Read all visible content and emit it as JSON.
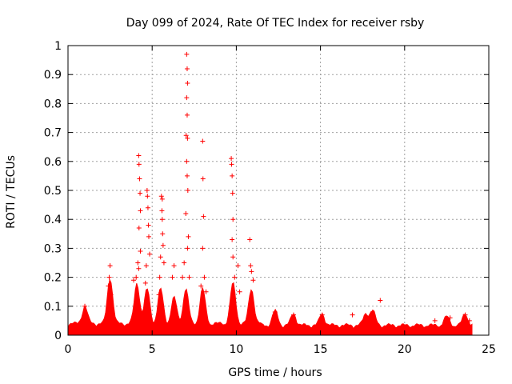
{
  "chart_data": {
    "type": "scatter",
    "title": "Day 099 of 2024, Rate Of TEC Index for receiver rsby",
    "xlabel": "GPS time / hours",
    "ylabel": "ROTI / TECUs",
    "xlim": [
      0,
      25
    ],
    "ylim": [
      0,
      1
    ],
    "xticks": [
      "0",
      "5",
      "10",
      "15",
      "20",
      "25"
    ],
    "yticks": [
      "0",
      "0.1",
      "0.2",
      "0.3",
      "0.4",
      "0.5",
      "0.6",
      "0.7",
      "0.8",
      "0.9",
      "1"
    ],
    "grid": true,
    "marker": "plus",
    "series_color": "#ff0000",
    "points": [
      [
        1.0,
        0.1
      ],
      [
        2.4,
        0.17
      ],
      [
        2.45,
        0.2
      ],
      [
        2.5,
        0.24
      ],
      [
        2.55,
        0.14
      ],
      [
        3.9,
        0.19
      ],
      [
        4.05,
        0.2
      ],
      [
        4.15,
        0.25
      ],
      [
        4.2,
        0.62
      ],
      [
        4.22,
        0.59
      ],
      [
        4.25,
        0.54
      ],
      [
        4.28,
        0.49
      ],
      [
        4.3,
        0.43
      ],
      [
        4.22,
        0.37
      ],
      [
        4.3,
        0.29
      ],
      [
        4.2,
        0.23
      ],
      [
        4.6,
        0.18
      ],
      [
        4.65,
        0.24
      ],
      [
        4.7,
        0.5
      ],
      [
        4.72,
        0.48
      ],
      [
        4.75,
        0.44
      ],
      [
        4.78,
        0.38
      ],
      [
        4.8,
        0.34
      ],
      [
        4.85,
        0.28
      ],
      [
        5.4,
        0.14
      ],
      [
        5.45,
        0.2
      ],
      [
        5.5,
        0.27
      ],
      [
        5.55,
        0.48
      ],
      [
        5.6,
        0.47
      ],
      [
        5.58,
        0.43
      ],
      [
        5.6,
        0.4
      ],
      [
        5.62,
        0.35
      ],
      [
        5.65,
        0.31
      ],
      [
        5.7,
        0.25
      ],
      [
        6.2,
        0.2
      ],
      [
        6.3,
        0.24
      ],
      [
        6.8,
        0.2
      ],
      [
        6.9,
        0.25
      ],
      [
        7.0,
        0.42
      ],
      [
        7.05,
        0.97
      ],
      [
        7.08,
        0.92
      ],
      [
        7.1,
        0.87
      ],
      [
        7.05,
        0.82
      ],
      [
        7.08,
        0.76
      ],
      [
        7.02,
        0.69
      ],
      [
        7.1,
        0.68
      ],
      [
        7.05,
        0.6
      ],
      [
        7.08,
        0.55
      ],
      [
        7.12,
        0.5
      ],
      [
        7.15,
        0.34
      ],
      [
        7.1,
        0.3
      ],
      [
        7.2,
        0.2
      ],
      [
        7.9,
        0.17
      ],
      [
        8.0,
        0.67
      ],
      [
        8.02,
        0.54
      ],
      [
        8.05,
        0.41
      ],
      [
        8.0,
        0.3
      ],
      [
        8.1,
        0.2
      ],
      [
        8.2,
        0.15
      ],
      [
        9.7,
        0.61
      ],
      [
        9.72,
        0.59
      ],
      [
        9.75,
        0.55
      ],
      [
        9.78,
        0.49
      ],
      [
        9.8,
        0.4
      ],
      [
        9.75,
        0.33
      ],
      [
        9.8,
        0.27
      ],
      [
        9.9,
        0.2
      ],
      [
        10.1,
        0.24
      ],
      [
        10.2,
        0.15
      ],
      [
        10.8,
        0.33
      ],
      [
        10.85,
        0.24
      ],
      [
        10.9,
        0.22
      ],
      [
        11.0,
        0.19
      ],
      [
        12.3,
        0.08
      ],
      [
        13.4,
        0.07
      ],
      [
        15.1,
        0.07
      ],
      [
        16.9,
        0.07
      ],
      [
        17.7,
        0.06
      ],
      [
        18.1,
        0.08
      ],
      [
        18.55,
        0.12
      ],
      [
        21.8,
        0.05
      ],
      [
        22.7,
        0.06
      ],
      [
        23.6,
        0.07
      ],
      [
        23.85,
        0.05
      ]
    ]
  }
}
